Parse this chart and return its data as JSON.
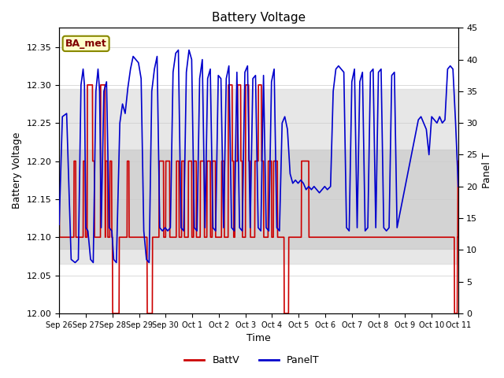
{
  "title": "Battery Voltage",
  "xlabel": "Time",
  "ylabel_left": "Battery Voltage",
  "ylabel_right": "Panel T",
  "ylim_left": [
    12.0,
    12.375
  ],
  "ylim_right": [
    0,
    45
  ],
  "annotation": "BA_met",
  "bg_band_outer": [
    12.065,
    12.295
  ],
  "bg_band_inner": [
    12.085,
    12.215
  ],
  "x_ticks_pos": [
    0,
    1,
    2,
    3,
    4,
    5,
    6,
    7,
    8,
    9,
    10,
    11,
    12,
    13,
    14,
    15
  ],
  "x_ticks_labels": [
    "Sep 26",
    "Sep 27",
    "Sep 28",
    "Sep 29",
    "Sep 30",
    "Oct 1",
    "Oct 2",
    "Oct 3",
    "Oct 4",
    "Oct 5",
    "Oct 6",
    "Oct 7",
    "Oct 8",
    "Oct 9",
    "Oct 10",
    "Oct 11"
  ],
  "batt_color": "#cc0000",
  "panel_color": "#0000cc",
  "batt_data": [
    [
      0.0,
      12.2
    ],
    [
      0.01,
      12.1
    ],
    [
      0.55,
      12.1
    ],
    [
      0.56,
      12.2
    ],
    [
      0.62,
      12.2
    ],
    [
      0.63,
      12.1
    ],
    [
      0.9,
      12.1
    ],
    [
      0.91,
      12.2
    ],
    [
      0.98,
      12.2
    ],
    [
      0.99,
      12.1
    ],
    [
      1.05,
      12.1
    ],
    [
      1.06,
      12.3
    ],
    [
      1.25,
      12.3
    ],
    [
      1.26,
      12.2
    ],
    [
      1.32,
      12.2
    ],
    [
      1.33,
      12.1
    ],
    [
      1.55,
      12.1
    ],
    [
      1.56,
      12.3
    ],
    [
      1.72,
      12.3
    ],
    [
      1.73,
      12.1
    ],
    [
      1.74,
      12.1
    ],
    [
      1.75,
      12.2
    ],
    [
      1.82,
      12.2
    ],
    [
      1.83,
      12.1
    ],
    [
      1.9,
      12.1
    ],
    [
      1.91,
      12.2
    ],
    [
      1.97,
      12.2
    ],
    [
      1.98,
      12.1
    ],
    [
      2.0,
      12.1
    ],
    [
      2.01,
      12.0
    ],
    [
      2.25,
      12.0
    ],
    [
      2.26,
      12.1
    ],
    [
      2.55,
      12.1
    ],
    [
      2.56,
      12.2
    ],
    [
      2.62,
      12.2
    ],
    [
      2.63,
      12.1
    ],
    [
      3.3,
      12.1
    ],
    [
      3.31,
      12.0
    ],
    [
      3.5,
      12.0
    ],
    [
      3.51,
      12.1
    ],
    [
      3.75,
      12.1
    ],
    [
      3.76,
      12.2
    ],
    [
      3.92,
      12.2
    ],
    [
      3.93,
      12.1
    ],
    [
      4.0,
      12.1
    ],
    [
      4.01,
      12.2
    ],
    [
      4.15,
      12.2
    ],
    [
      4.16,
      12.1
    ],
    [
      4.4,
      12.1
    ],
    [
      4.41,
      12.2
    ],
    [
      4.5,
      12.2
    ],
    [
      4.51,
      12.1
    ],
    [
      4.6,
      12.1
    ],
    [
      4.61,
      12.2
    ],
    [
      4.7,
      12.2
    ],
    [
      4.71,
      12.1
    ],
    [
      4.85,
      12.1
    ],
    [
      4.86,
      12.2
    ],
    [
      4.98,
      12.2
    ],
    [
      4.99,
      12.1
    ],
    [
      5.05,
      12.1
    ],
    [
      5.06,
      12.2
    ],
    [
      5.15,
      12.2
    ],
    [
      5.16,
      12.1
    ],
    [
      5.3,
      12.1
    ],
    [
      5.31,
      12.2
    ],
    [
      5.45,
      12.2
    ],
    [
      5.46,
      12.1
    ],
    [
      5.55,
      12.1
    ],
    [
      5.56,
      12.2
    ],
    [
      5.68,
      12.2
    ],
    [
      5.69,
      12.1
    ],
    [
      5.75,
      12.1
    ],
    [
      5.76,
      12.2
    ],
    [
      5.87,
      12.2
    ],
    [
      5.88,
      12.1
    ],
    [
      6.1,
      12.1
    ],
    [
      6.11,
      12.2
    ],
    [
      6.2,
      12.2
    ],
    [
      6.21,
      12.1
    ],
    [
      6.35,
      12.1
    ],
    [
      6.36,
      12.3
    ],
    [
      6.5,
      12.3
    ],
    [
      6.51,
      12.2
    ],
    [
      6.55,
      12.2
    ],
    [
      6.56,
      12.1
    ],
    [
      6.6,
      12.1
    ],
    [
      6.61,
      12.2
    ],
    [
      6.7,
      12.2
    ],
    [
      6.71,
      12.3
    ],
    [
      6.82,
      12.3
    ],
    [
      6.83,
      12.2
    ],
    [
      6.88,
      12.2
    ],
    [
      6.89,
      12.1
    ],
    [
      7.0,
      12.1
    ],
    [
      7.01,
      12.3
    ],
    [
      7.12,
      12.3
    ],
    [
      7.13,
      12.2
    ],
    [
      7.18,
      12.2
    ],
    [
      7.19,
      12.1
    ],
    [
      7.35,
      12.1
    ],
    [
      7.36,
      12.2
    ],
    [
      7.48,
      12.2
    ],
    [
      7.49,
      12.3
    ],
    [
      7.6,
      12.3
    ],
    [
      7.61,
      12.2
    ],
    [
      7.68,
      12.2
    ],
    [
      7.69,
      12.1
    ],
    [
      7.85,
      12.1
    ],
    [
      7.86,
      12.2
    ],
    [
      7.98,
      12.2
    ],
    [
      7.99,
      12.1
    ],
    [
      8.05,
      12.1
    ],
    [
      8.06,
      12.2
    ],
    [
      8.2,
      12.2
    ],
    [
      8.21,
      12.1
    ],
    [
      8.45,
      12.1
    ],
    [
      8.46,
      12.0
    ],
    [
      8.62,
      12.0
    ],
    [
      8.63,
      12.1
    ],
    [
      9.1,
      12.1
    ],
    [
      9.11,
      12.2
    ],
    [
      9.38,
      12.2
    ],
    [
      9.39,
      12.1
    ],
    [
      14.85,
      12.1
    ],
    [
      14.86,
      12.0
    ],
    [
      14.96,
      12.0
    ],
    [
      14.97,
      12.1
    ],
    [
      14.98,
      12.1
    ],
    [
      14.99,
      12.2
    ],
    [
      15.0,
      12.2
    ]
  ],
  "panel_data": [
    [
      0.0,
      14.0
    ],
    [
      0.12,
      31.0
    ],
    [
      0.28,
      31.5
    ],
    [
      0.35,
      22.0
    ],
    [
      0.45,
      8.5
    ],
    [
      0.6,
      8.0
    ],
    [
      0.72,
      8.5
    ],
    [
      0.82,
      36.0
    ],
    [
      0.9,
      38.5
    ],
    [
      0.95,
      36.0
    ],
    [
      1.0,
      13.5
    ],
    [
      1.08,
      13.0
    ],
    [
      1.18,
      8.5
    ],
    [
      1.28,
      8.0
    ],
    [
      1.38,
      35.0
    ],
    [
      1.46,
      38.5
    ],
    [
      1.52,
      35.0
    ],
    [
      1.58,
      13.5
    ],
    [
      1.68,
      35.0
    ],
    [
      1.78,
      36.5
    ],
    [
      1.88,
      13.5
    ],
    [
      1.98,
      13.0
    ],
    [
      2.05,
      8.5
    ],
    [
      2.15,
      8.0
    ],
    [
      2.28,
      30.0
    ],
    [
      2.38,
      33.0
    ],
    [
      2.48,
      31.5
    ],
    [
      2.58,
      35.5
    ],
    [
      2.68,
      38.5
    ],
    [
      2.78,
      40.5
    ],
    [
      2.88,
      40.0
    ],
    [
      2.98,
      39.5
    ],
    [
      3.08,
      37.0
    ],
    [
      3.18,
      13.0
    ],
    [
      3.28,
      8.5
    ],
    [
      3.38,
      8.0
    ],
    [
      3.48,
      35.0
    ],
    [
      3.58,
      38.5
    ],
    [
      3.68,
      40.5
    ],
    [
      3.78,
      13.5
    ],
    [
      3.88,
      13.0
    ],
    [
      3.98,
      13.5
    ],
    [
      4.08,
      13.0
    ],
    [
      4.18,
      13.5
    ],
    [
      4.28,
      38.0
    ],
    [
      4.38,
      41.0
    ],
    [
      4.48,
      41.5
    ],
    [
      4.58,
      13.5
    ],
    [
      4.68,
      13.0
    ],
    [
      4.78,
      38.0
    ],
    [
      4.88,
      41.5
    ],
    [
      4.98,
      40.0
    ],
    [
      5.08,
      13.5
    ],
    [
      5.18,
      13.0
    ],
    [
      5.28,
      37.0
    ],
    [
      5.38,
      40.0
    ],
    [
      5.48,
      13.5
    ],
    [
      5.58,
      37.0
    ],
    [
      5.68,
      38.5
    ],
    [
      5.78,
      13.5
    ],
    [
      5.88,
      13.0
    ],
    [
      5.98,
      37.5
    ],
    [
      6.08,
      37.0
    ],
    [
      6.18,
      13.5
    ],
    [
      6.28,
      37.0
    ],
    [
      6.38,
      39.0
    ],
    [
      6.48,
      13.5
    ],
    [
      6.58,
      13.0
    ],
    [
      6.68,
      38.0
    ],
    [
      6.78,
      13.5
    ],
    [
      6.88,
      13.0
    ],
    [
      6.98,
      38.0
    ],
    [
      7.08,
      39.0
    ],
    [
      7.18,
      13.5
    ],
    [
      7.28,
      37.0
    ],
    [
      7.38,
      37.5
    ],
    [
      7.48,
      13.5
    ],
    [
      7.58,
      13.0
    ],
    [
      7.68,
      37.5
    ],
    [
      7.78,
      13.5
    ],
    [
      7.88,
      13.0
    ],
    [
      7.98,
      36.5
    ],
    [
      8.08,
      38.5
    ],
    [
      8.18,
      13.5
    ],
    [
      8.28,
      13.0
    ],
    [
      8.38,
      30.0
    ],
    [
      8.48,
      31.0
    ],
    [
      8.58,
      29.0
    ],
    [
      8.68,
      22.0
    ],
    [
      8.78,
      20.5
    ],
    [
      8.88,
      21.0
    ],
    [
      8.98,
      20.5
    ],
    [
      9.08,
      21.0
    ],
    [
      9.18,
      20.5
    ],
    [
      9.28,
      19.5
    ],
    [
      9.38,
      20.0
    ],
    [
      9.48,
      19.5
    ],
    [
      9.58,
      20.0
    ],
    [
      9.68,
      19.5
    ],
    [
      9.78,
      19.0
    ],
    [
      9.88,
      19.5
    ],
    [
      9.98,
      20.0
    ],
    [
      10.08,
      19.5
    ],
    [
      10.2,
      20.0
    ],
    [
      10.3,
      35.0
    ],
    [
      10.4,
      38.5
    ],
    [
      10.5,
      39.0
    ],
    [
      10.6,
      38.5
    ],
    [
      10.7,
      38.0
    ],
    [
      10.8,
      13.5
    ],
    [
      10.9,
      13.0
    ],
    [
      11.0,
      36.5
    ],
    [
      11.1,
      38.5
    ],
    [
      11.2,
      13.5
    ],
    [
      11.3,
      36.5
    ],
    [
      11.4,
      38.0
    ],
    [
      11.5,
      13.0
    ],
    [
      11.6,
      13.5
    ],
    [
      11.7,
      38.0
    ],
    [
      11.8,
      38.5
    ],
    [
      11.9,
      13.5
    ],
    [
      12.0,
      38.0
    ],
    [
      12.1,
      38.5
    ],
    [
      12.2,
      13.5
    ],
    [
      12.3,
      13.0
    ],
    [
      12.4,
      13.5
    ],
    [
      12.5,
      37.5
    ],
    [
      12.6,
      38.0
    ],
    [
      12.7,
      13.5
    ],
    [
      13.5,
      30.5
    ],
    [
      13.6,
      31.0
    ],
    [
      13.7,
      30.0
    ],
    [
      13.8,
      29.0
    ],
    [
      13.9,
      25.0
    ],
    [
      14.0,
      31.0
    ],
    [
      14.1,
      30.5
    ],
    [
      14.2,
      30.0
    ],
    [
      14.3,
      31.0
    ],
    [
      14.4,
      30.0
    ],
    [
      14.5,
      30.5
    ],
    [
      14.6,
      38.5
    ],
    [
      14.7,
      39.0
    ],
    [
      14.8,
      38.5
    ],
    [
      14.9,
      30.0
    ],
    [
      15.0,
      20.0
    ]
  ]
}
